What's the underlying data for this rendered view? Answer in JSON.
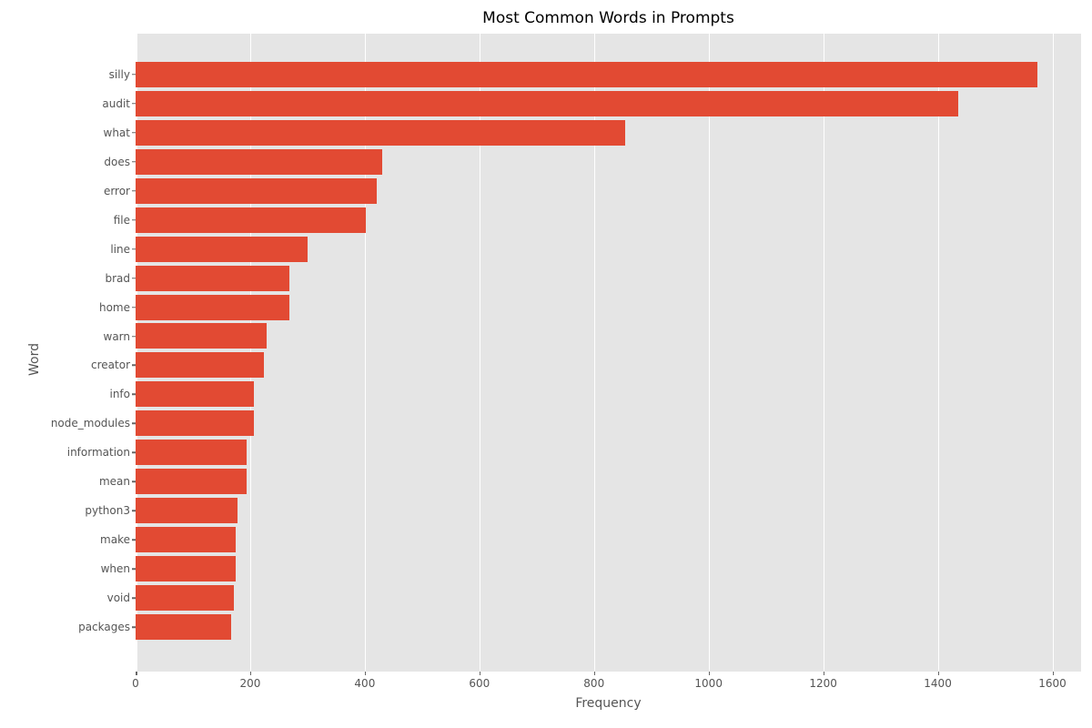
{
  "chart_data": {
    "type": "bar",
    "orientation": "horizontal",
    "title": "Most Common Words in Prompts",
    "xlabel": "Frequency",
    "ylabel": "Word",
    "categories": [
      "silly",
      "audit",
      "what",
      "does",
      "error",
      "file",
      "line",
      "brad",
      "home",
      "warn",
      "creator",
      "info",
      "node_modules",
      "information",
      "mean",
      "python3",
      "make",
      "when",
      "void",
      "packages"
    ],
    "values": [
      1573,
      1435,
      855,
      430,
      421,
      401,
      300,
      269,
      268,
      228,
      224,
      206,
      206,
      194,
      194,
      178,
      175,
      174,
      171,
      167
    ],
    "xticks": [
      0,
      200,
      400,
      600,
      800,
      1000,
      1200,
      1400,
      1600
    ],
    "xlim": [
      0,
      1650
    ],
    "grid": "vertical-white-lines",
    "legend": "none",
    "colors": {
      "bar": "#e24a33",
      "plot_background": "#e5e5e5",
      "gridline": "#ffffff",
      "tick_text": "#555555",
      "title_text": "#000000"
    }
  }
}
